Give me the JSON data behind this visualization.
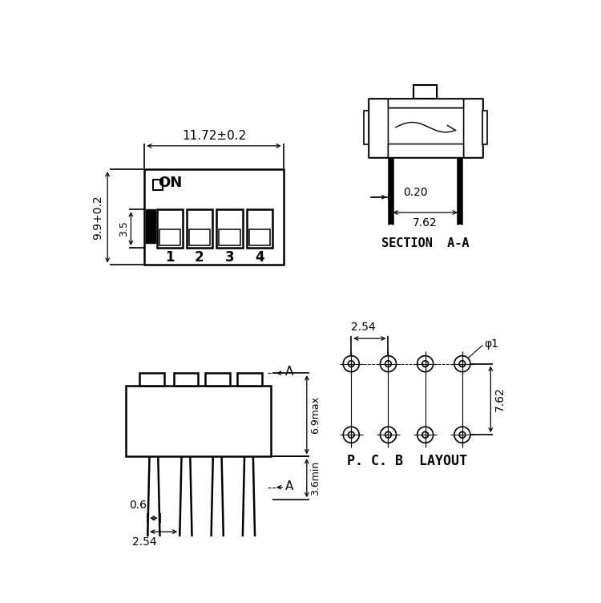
{
  "bg_color": "#ffffff",
  "line_color": "#000000",
  "top_left": {
    "width_dim": "11.72±0.2",
    "height_dim": "9.9+0.2",
    "height_dim2": "3.5",
    "switch_labels": [
      "1",
      "2",
      "3",
      "4"
    ]
  },
  "top_right": {
    "dim1": "0.20",
    "dim2": "7.62",
    "label": "SECTION  A-A"
  },
  "bottom_left": {
    "dim1": "6.9max",
    "dim2": "3.6min",
    "dim3": "0.6",
    "dim4": "2.54",
    "label_A": "A"
  },
  "bottom_right": {
    "dim1": "2.54",
    "dim2": "7.62",
    "dim3": "φ1",
    "label": "P. C. B  LAYOUT"
  }
}
